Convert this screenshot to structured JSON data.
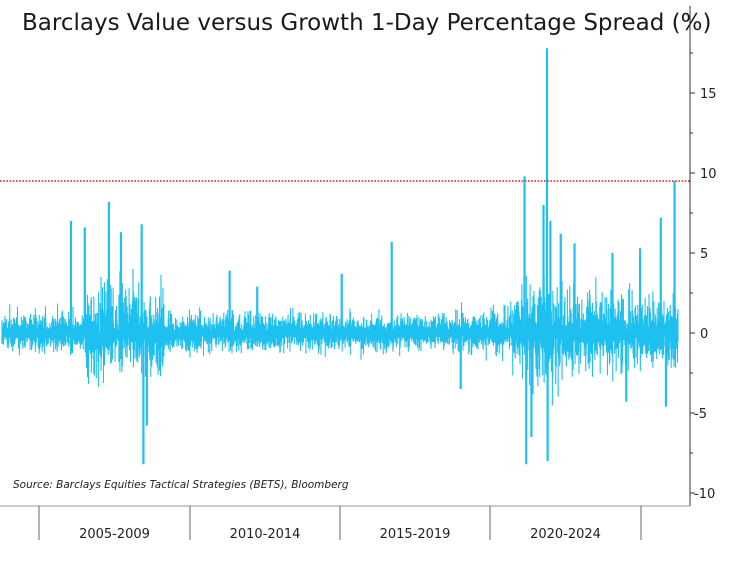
{
  "chart_data": {
    "type": "bar",
    "title": "Barclays Value versus Growth 1-Day Percentage Spread (%)",
    "source": "Source: Barclays Equities Tactical Strategies (BETS), Bloomberg",
    "xlabel": "",
    "ylabel": "",
    "ylim": [
      -10.5,
      20
    ],
    "yticks": [
      15,
      10,
      5,
      0,
      -5,
      -10
    ],
    "reference_line": {
      "value": 9.5,
      "style": "dotted",
      "color": "#e31a1c"
    },
    "series_color": "#1ec0f0",
    "categories": [
      "2005-2009",
      "2010-2014",
      "2015-2019",
      "2020-2024"
    ],
    "x_range": [
      2005.0,
      2024.6
    ],
    "regimes": [
      {
        "start": 2005.0,
        "end": 2007.4,
        "amp": 1.0
      },
      {
        "start": 2007.4,
        "end": 2009.7,
        "amp": 2.5
      },
      {
        "start": 2009.7,
        "end": 2011.5,
        "amp": 0.9
      },
      {
        "start": 2011.5,
        "end": 2012.6,
        "amp": 1.1
      },
      {
        "start": 2012.6,
        "end": 2016.0,
        "amp": 0.9
      },
      {
        "start": 2016.0,
        "end": 2018.3,
        "amp": 0.9
      },
      {
        "start": 2018.3,
        "end": 2019.8,
        "amp": 1.2
      },
      {
        "start": 2019.8,
        "end": 2020.2,
        "amp": 1.8
      },
      {
        "start": 2020.2,
        "end": 2021.3,
        "amp": 3.2
      },
      {
        "start": 2021.3,
        "end": 2023.0,
        "amp": 2.2
      },
      {
        "start": 2023.0,
        "end": 2024.6,
        "amp": 1.8
      }
    ],
    "notable_spikes": [
      {
        "x": 2007.0,
        "value": 7.0
      },
      {
        "x": 2007.4,
        "value": 6.6
      },
      {
        "x": 2008.1,
        "value": 8.2
      },
      {
        "x": 2008.45,
        "value": 6.3
      },
      {
        "x": 2009.05,
        "value": 6.8
      },
      {
        "x": 2009.1,
        "value": -8.2
      },
      {
        "x": 2009.2,
        "value": -5.8
      },
      {
        "x": 2011.6,
        "value": 3.9
      },
      {
        "x": 2012.4,
        "value": 2.9
      },
      {
        "x": 2014.85,
        "value": 3.7
      },
      {
        "x": 2016.3,
        "value": 5.7
      },
      {
        "x": 2018.3,
        "value": -3.5
      },
      {
        "x": 2020.15,
        "value": 9.8
      },
      {
        "x": 2020.2,
        "value": -8.2
      },
      {
        "x": 2020.35,
        "value": -6.5
      },
      {
        "x": 2020.7,
        "value": 8.0
      },
      {
        "x": 2020.8,
        "value": 17.8
      },
      {
        "x": 2020.82,
        "value": -8.0
      },
      {
        "x": 2020.9,
        "value": 7.0
      },
      {
        "x": 2021.2,
        "value": 6.2
      },
      {
        "x": 2021.6,
        "value": 5.6
      },
      {
        "x": 2022.7,
        "value": 5.0
      },
      {
        "x": 2023.1,
        "value": -4.3
      },
      {
        "x": 2023.5,
        "value": 5.3
      },
      {
        "x": 2024.1,
        "value": 7.2
      },
      {
        "x": 2024.25,
        "value": -4.6
      },
      {
        "x": 2024.5,
        "value": 9.5
      }
    ]
  }
}
